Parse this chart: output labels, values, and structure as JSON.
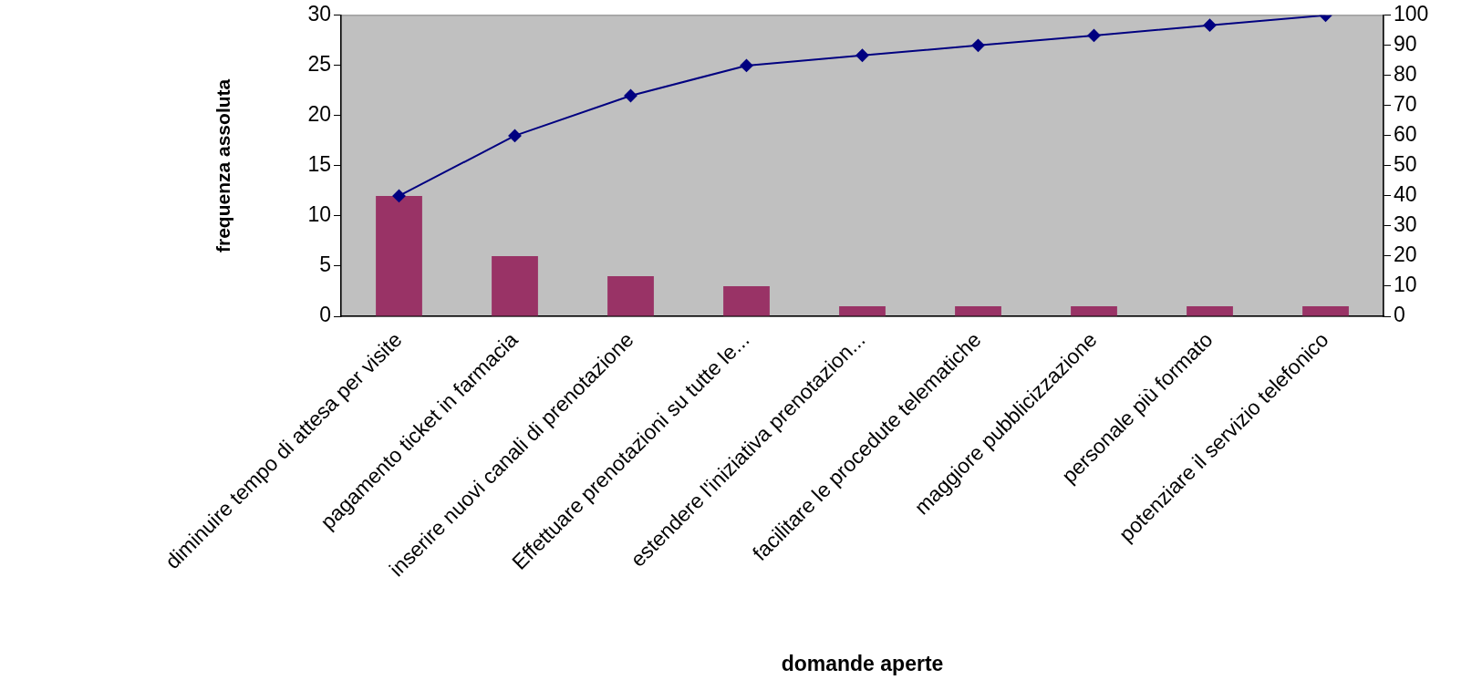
{
  "chart_data": {
    "type": "bar",
    "xlabel": "domande aperte",
    "ylabel": "frequenza assoluta",
    "categories": [
      "diminuire tempo di attesa per visite",
      "pagamento ticket in farmacia",
      "inserire nuovi canali di prenotazione",
      "Effettuare prenotazioni su tutte le...",
      "estendere l'iniziativa prenotazion...",
      "facilitare le procedute telematiche",
      "maggiore pubblicizzazione",
      "personale più formato",
      "potenziare il servizio telefonico"
    ],
    "series": [
      {
        "color": "#993366",
        "values": [
          12,
          6,
          4,
          3,
          1,
          1,
          1,
          1,
          1
        ]
      },
      {
        "type": "line",
        "axis": "y2",
        "color": "#000080",
        "values": [
          40,
          60,
          73.3,
          83.3,
          86.7,
          90,
          93.3,
          96.7,
          100
        ]
      }
    ],
    "marker": "diamond",
    "ylim": [
      0,
      30
    ],
    "yticks": [
      0,
      5,
      10,
      15,
      20,
      25,
      30
    ],
    "y2lim": [
      0,
      100
    ],
    "y2ticks": [
      0,
      10,
      20,
      30,
      40,
      50,
      60,
      70,
      80,
      90,
      100
    ]
  }
}
